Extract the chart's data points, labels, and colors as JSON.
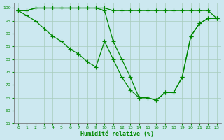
{
  "bg_color": "#cce8f0",
  "grid_color": "#a8ccbb",
  "line_color": "#008800",
  "xlabel": "Humidité relative (%)",
  "xlabel_color": "#008800",
  "tick_color": "#008800",
  "ylim": [
    55,
    102
  ],
  "xlim": [
    -0.5,
    23.5
  ],
  "yticks": [
    55,
    60,
    65,
    70,
    75,
    80,
    85,
    90,
    95,
    100
  ],
  "xticks": [
    0,
    1,
    2,
    3,
    4,
    5,
    6,
    7,
    8,
    9,
    10,
    11,
    12,
    13,
    14,
    15,
    16,
    17,
    18,
    19,
    20,
    21,
    22,
    23
  ],
  "line1_y": [
    99,
    99,
    100,
    100,
    100,
    100,
    100,
    100,
    100,
    100,
    100,
    99,
    99,
    99,
    99,
    99,
    99,
    99,
    99,
    99,
    99,
    99,
    99,
    96
  ],
  "line2_y": [
    99,
    99,
    100,
    100,
    100,
    100,
    100,
    100,
    100,
    100,
    99,
    87,
    80,
    73,
    65,
    65,
    64,
    67,
    67,
    73,
    89,
    94,
    96,
    96
  ],
  "line3_y": [
    99,
    97,
    95,
    92,
    89,
    87,
    84,
    82,
    79,
    77,
    87,
    80,
    73,
    68,
    65,
    65,
    64,
    67,
    67,
    73,
    89,
    94,
    96,
    96
  ]
}
